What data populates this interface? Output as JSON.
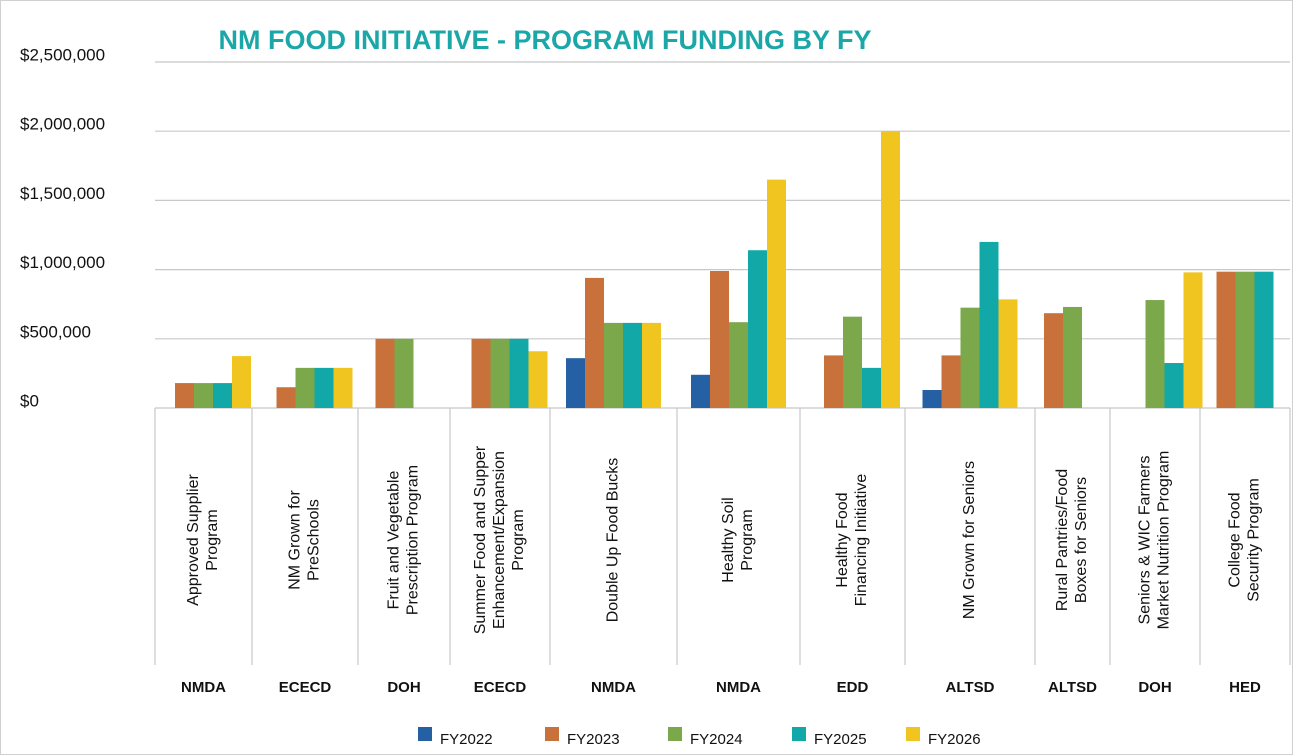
{
  "chart_data": {
    "type": "bar",
    "title": "NM FOOD INITIATIVE - PROGRAM FUNDING BY FY",
    "categories": [
      "Approved Supplier\nProgram",
      "NM Grown for\nPreSchools",
      "Fruit and Vegetable\nPrescription Program",
      "Summer Food and Supper\nEnhancement/Expansion\nProgram",
      "Double Up Food Bucks",
      "Healthy Soil\nProgram",
      "Healthy Food\nFinancing Initiative",
      "NM Grown for Seniors",
      "Rural Pantries/Food\nBoxes for Seniors",
      "Seniors & WIC Farmers\nMarket Nutrition Program",
      "College Food\nSecurity Program"
    ],
    "agencies": [
      "NMDA",
      "ECECD",
      "DOH",
      "ECECD",
      "NMDA",
      "NMDA",
      "EDD",
      "ALTSD",
      "ALTSD",
      "DOH",
      "HED"
    ],
    "series": [
      {
        "name": "FY2022",
        "color": "#2660a4",
        "values": [
          null,
          null,
          null,
          null,
          360000,
          240000,
          null,
          130000,
          null,
          null,
          null
        ]
      },
      {
        "name": "FY2023",
        "color": "#c8713b",
        "values": [
          180000,
          150000,
          500000,
          500000,
          940000,
          990000,
          380000,
          380000,
          685000,
          null,
          985000
        ]
      },
      {
        "name": "FY2024",
        "color": "#7ba84b",
        "values": [
          180000,
          290000,
          500000,
          500000,
          615000,
          620000,
          660000,
          725000,
          730000,
          780000,
          985000
        ]
      },
      {
        "name": "FY2025",
        "color": "#12a8a8",
        "values": [
          180000,
          290000,
          null,
          500000,
          615000,
          1140000,
          290000,
          1200000,
          null,
          325000,
          985000
        ]
      },
      {
        "name": "FY2026",
        "color": "#f1c51f",
        "values": [
          375000,
          290000,
          null,
          410000,
          615000,
          1650000,
          2000000,
          785000,
          null,
          980000,
          null
        ]
      }
    ],
    "ylim": [
      0,
      2500000
    ],
    "yticks": [
      {
        "value": 0,
        "label": "$0"
      },
      {
        "value": 500000,
        "label": "$500,000"
      },
      {
        "value": 1000000,
        "label": "$1,000,000"
      },
      {
        "value": 1500000,
        "label": "$1,500,000"
      },
      {
        "value": 2000000,
        "label": "$2,000,000"
      },
      {
        "value": 2500000,
        "label": "$2,500,000"
      }
    ],
    "grid": true
  }
}
